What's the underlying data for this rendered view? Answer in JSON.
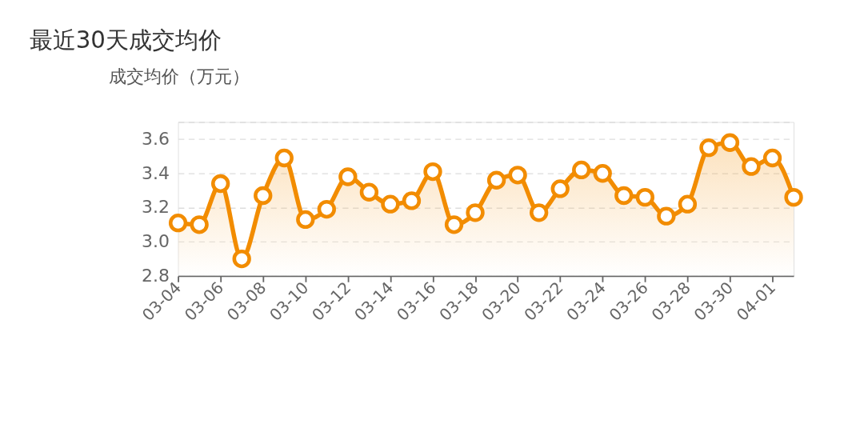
{
  "chart_data": {
    "type": "area",
    "title": "最近30天成交均价",
    "ylabel": "成交均价（万元）",
    "categories": [
      "03-04",
      null,
      "03-06",
      null,
      "03-08",
      null,
      "03-10",
      null,
      "03-12",
      null,
      "03-14",
      null,
      "03-16",
      null,
      "03-18",
      null,
      "03-20",
      null,
      "03-22",
      null,
      "03-24",
      null,
      "03-26",
      null,
      "03-28",
      null,
      "03-30",
      null,
      "04-01",
      null
    ],
    "series": [
      {
        "color": "#f28c00",
        "values": [
          3.11,
          3.1,
          3.34,
          2.9,
          3.27,
          3.49,
          3.13,
          3.19,
          3.38,
          3.29,
          3.22,
          3.24,
          3.41,
          3.1,
          3.17,
          3.36,
          3.39,
          3.17,
          3.31,
          3.42,
          3.4,
          3.27,
          3.26,
          3.15,
          3.22,
          3.55,
          3.58,
          3.44,
          3.49,
          3.26
        ]
      }
    ],
    "ylim": [
      2.8,
      3.7
    ],
    "yticks": [
      2.8,
      {
        "value": 3.0,
        "label": "3.0"
      },
      3.2,
      3.4,
      3.6,
      {
        "value": 3.7,
        "label": null
      }
    ],
    "grid": "y",
    "marker": "circle",
    "line_style": "solid"
  }
}
